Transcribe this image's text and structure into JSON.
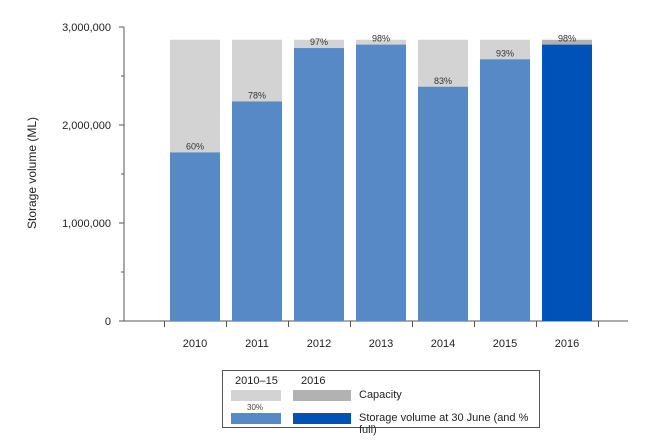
{
  "chart_data": {
    "type": "bar",
    "categories": [
      "2010",
      "2011",
      "2012",
      "2013",
      "2014",
      "2015",
      "2016"
    ],
    "capacity": [
      2870000,
      2870000,
      2870000,
      2870000,
      2870000,
      2870000,
      2870000
    ],
    "storage_volume": [
      1720000,
      2240000,
      2785000,
      2820000,
      2390000,
      2670000,
      2820000
    ],
    "percent_full_labels": [
      "60%",
      "78%",
      "97%",
      "98%",
      "83%",
      "93%",
      "98%"
    ],
    "ylabel": "Storage volume (ML)",
    "yticks": [
      0,
      1000000,
      2000000,
      3000000
    ],
    "ytick_labels": [
      "0",
      "1,000,000",
      "2,000,000",
      "3,000,000"
    ],
    "ylim": [
      0,
      3000000
    ],
    "grid": false,
    "highlight_category": "2016",
    "colors": {
      "capacity_2010_15": "#d3d3d3",
      "capacity_2016": "#b2b2b2",
      "volume_2010_15": "#5689c5",
      "volume_2016": "#0052b8"
    }
  },
  "legend": {
    "group_label_a": "2010–15",
    "group_label_b": "2016",
    "sample_pct": "30%",
    "capacity_label": "Capacity",
    "volume_label": "Storage volume at 30 June (and % full)"
  }
}
